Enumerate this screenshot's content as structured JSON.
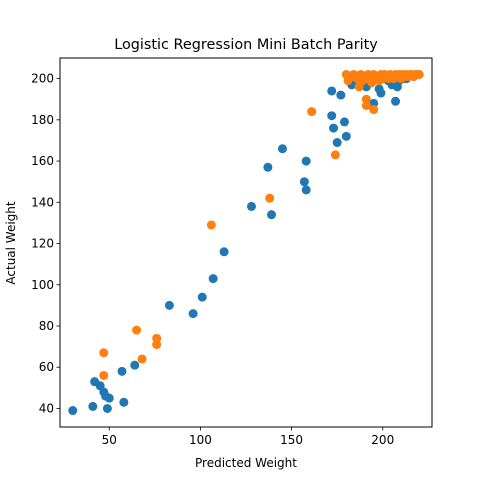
{
  "chart_data": {
    "type": "scatter",
    "title": "Logistic Regression Mini Batch Parity",
    "xlabel": "Predicted Weight",
    "ylabel": "Actual Weight",
    "xlim": [
      23,
      227
    ],
    "ylim": [
      31,
      210
    ],
    "xticks": [
      50,
      100,
      150,
      200
    ],
    "yticks": [
      40,
      60,
      80,
      100,
      120,
      140,
      160,
      180,
      200
    ],
    "grid": false,
    "series": [
      {
        "color": "#1f77b4",
        "points": [
          [
            30,
            39
          ],
          [
            41,
            41
          ],
          [
            42,
            53
          ],
          [
            45,
            51
          ],
          [
            47,
            48
          ],
          [
            48,
            46
          ],
          [
            49,
            40
          ],
          [
            50,
            45
          ],
          [
            57,
            58
          ],
          [
            58,
            43
          ],
          [
            64,
            61
          ],
          [
            83,
            90
          ],
          [
            96,
            86
          ],
          [
            101,
            94
          ],
          [
            107,
            103
          ],
          [
            113,
            116
          ],
          [
            128,
            138
          ],
          [
            137,
            157
          ],
          [
            139,
            134
          ],
          [
            145,
            166
          ],
          [
            157,
            150
          ],
          [
            158,
            146
          ],
          [
            158,
            160
          ],
          [
            172,
            182
          ],
          [
            172,
            194
          ],
          [
            173,
            176
          ],
          [
            175,
            169
          ],
          [
            177,
            192
          ],
          [
            179,
            179
          ],
          [
            180,
            172
          ],
          [
            183,
            197
          ],
          [
            186,
            199
          ],
          [
            188,
            198
          ],
          [
            191,
            196
          ],
          [
            193,
            200
          ],
          [
            195,
            188
          ],
          [
            198,
            195
          ],
          [
            199,
            193
          ],
          [
            201,
            200
          ],
          [
            203,
            199
          ],
          [
            205,
            197
          ],
          [
            207,
            189
          ],
          [
            208,
            196
          ],
          [
            209,
            199
          ],
          [
            211,
            200
          ],
          [
            213,
            200
          ]
        ]
      },
      {
        "color": "#ff7f0e",
        "points": [
          [
            47,
            56
          ],
          [
            47,
            67
          ],
          [
            65,
            78
          ],
          [
            68,
            64
          ],
          [
            76,
            74
          ],
          [
            76,
            71
          ],
          [
            106,
            129
          ],
          [
            138,
            142
          ],
          [
            161,
            184
          ],
          [
            174,
            163
          ],
          [
            180,
            202
          ],
          [
            181,
            199
          ],
          [
            182,
            201
          ],
          [
            184,
            202
          ],
          [
            186,
            200
          ],
          [
            187,
            196
          ],
          [
            188,
            202
          ],
          [
            189,
            199
          ],
          [
            190,
            201
          ],
          [
            191,
            190
          ],
          [
            191,
            187
          ],
          [
            192,
            202
          ],
          [
            193,
            200
          ],
          [
            194,
            198
          ],
          [
            195,
            185
          ],
          [
            195,
            202
          ],
          [
            196,
            200
          ],
          [
            197,
            201
          ],
          [
            198,
            199
          ],
          [
            199,
            202
          ],
          [
            200,
            200
          ],
          [
            201,
            202
          ],
          [
            202,
            201
          ],
          [
            203,
            200
          ],
          [
            204,
            202
          ],
          [
            205,
            201
          ],
          [
            206,
            200
          ],
          [
            207,
            202
          ],
          [
            208,
            201
          ],
          [
            209,
            202
          ],
          [
            210,
            200
          ],
          [
            211,
            202
          ],
          [
            212,
            201
          ],
          [
            213,
            202
          ],
          [
            214,
            201
          ],
          [
            215,
            202
          ],
          [
            216,
            202
          ],
          [
            217,
            201
          ],
          [
            218,
            202
          ],
          [
            219,
            202
          ],
          [
            220,
            202
          ]
        ]
      }
    ]
  }
}
